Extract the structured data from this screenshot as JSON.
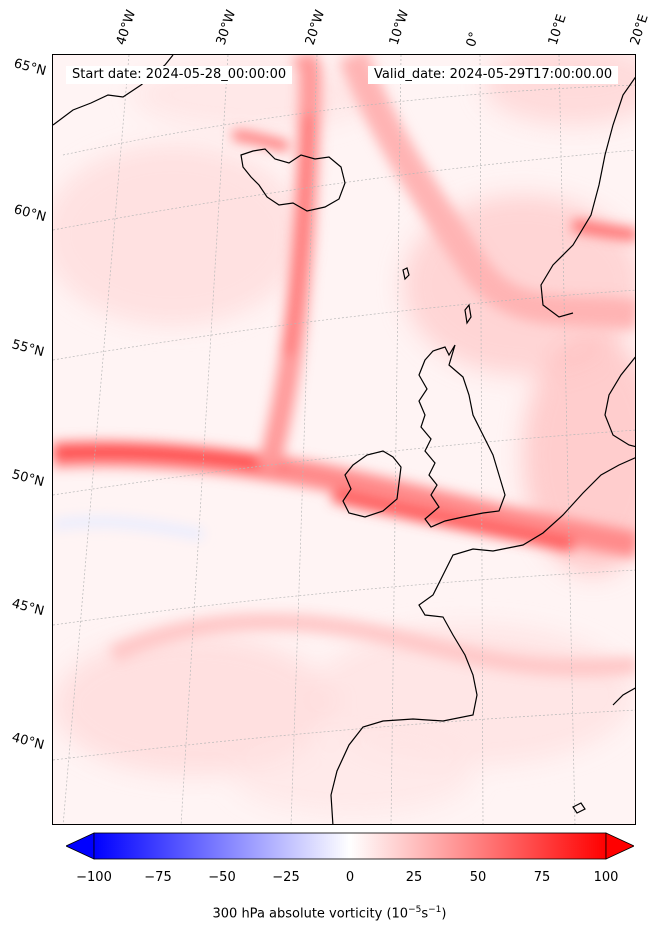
{
  "header": {
    "start_date": "Start date: 2024-05-28_00:00:00",
    "valid_date": "Valid_date: 2024-05-29T17:00:00.00"
  },
  "longitude_labels": [
    "40°W",
    "30°W",
    "20°W",
    "10°W",
    "0°",
    "10°E",
    "20°E"
  ],
  "latitude_labels": [
    "65°N",
    "60°N",
    "55°N",
    "50°N",
    "45°N",
    "40°N"
  ],
  "colorbar": {
    "ticks": [
      "−100",
      "−75",
      "−50",
      "−25",
      "0",
      "25",
      "50",
      "75",
      "100"
    ],
    "label": "300 hPa absolute vorticity (10",
    "label_exp1": "−5",
    "label_mid": "s",
    "label_exp2": "−1",
    "label_end": ")",
    "min": -100,
    "max": 100,
    "colors": {
      "negative": "#0000ff",
      "zero": "#ffffff",
      "positive": "#ff0000"
    }
  }
}
